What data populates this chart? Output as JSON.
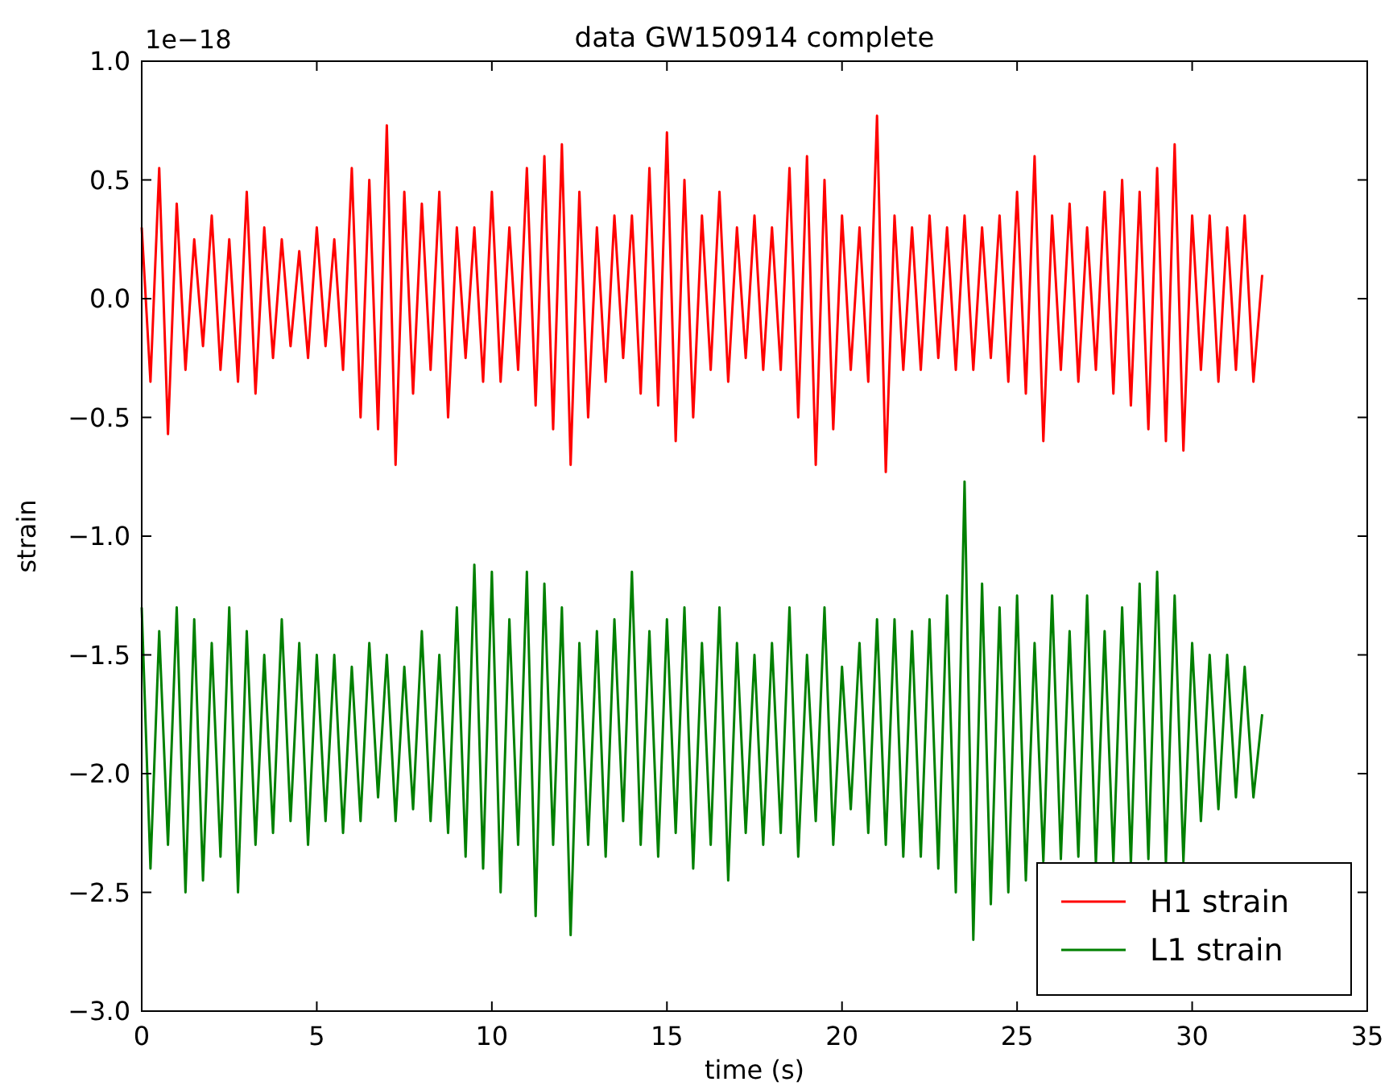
{
  "chart_data": {
    "type": "line",
    "title": "data GW150914 complete",
    "xlabel": "time (s)",
    "ylabel": "strain",
    "annotations": [
      "1e−18"
    ],
    "x": [
      0,
      0.25,
      0.5,
      0.75,
      1,
      1.25,
      1.5,
      1.75,
      2,
      2.25,
      2.5,
      2.75,
      3,
      3.25,
      3.5,
      3.75,
      4,
      4.25,
      4.5,
      4.75,
      5,
      5.25,
      5.5,
      5.75,
      6,
      6.25,
      6.5,
      6.75,
      7,
      7.25,
      7.5,
      7.75,
      8,
      8.25,
      8.5,
      8.75,
      9,
      9.25,
      9.5,
      9.75,
      10,
      10.25,
      10.5,
      10.75,
      11,
      11.25,
      11.5,
      11.75,
      12,
      12.25,
      12.5,
      12.75,
      13,
      13.25,
      13.5,
      13.75,
      14,
      14.25,
      14.5,
      14.75,
      15,
      15.25,
      15.5,
      15.75,
      16,
      16.25,
      16.5,
      16.75,
      17,
      17.25,
      17.5,
      17.75,
      18,
      18.25,
      18.5,
      18.75,
      19,
      19.25,
      19.5,
      19.75,
      20,
      20.25,
      20.5,
      20.75,
      21,
      21.25,
      21.5,
      21.75,
      22,
      22.25,
      22.5,
      22.75,
      23,
      23.25,
      23.5,
      23.75,
      24,
      24.25,
      24.5,
      24.75,
      25,
      25.25,
      25.5,
      25.75,
      26,
      26.25,
      26.5,
      26.75,
      27,
      27.25,
      27.5,
      27.75,
      28,
      28.25,
      28.5,
      28.75,
      29,
      29.25,
      29.5,
      29.75,
      30,
      30.25,
      30.5,
      30.75,
      31,
      31.25,
      31.5,
      31.75,
      32
    ],
    "series": [
      {
        "name": "H1 strain",
        "color": "#ff0000",
        "values": [
          0.3,
          -0.35,
          0.55,
          -0.57,
          0.4,
          -0.3,
          0.25,
          -0.2,
          0.35,
          -0.3,
          0.25,
          -0.35,
          0.45,
          -0.4,
          0.3,
          -0.25,
          0.25,
          -0.2,
          0.2,
          -0.25,
          0.3,
          -0.2,
          0.25,
          -0.3,
          0.55,
          -0.5,
          0.5,
          -0.55,
          0.73,
          -0.7,
          0.45,
          -0.4,
          0.4,
          -0.3,
          0.45,
          -0.5,
          0.3,
          -0.25,
          0.3,
          -0.35,
          0.45,
          -0.35,
          0.3,
          -0.3,
          0.55,
          -0.45,
          0.6,
          -0.55,
          0.65,
          -0.7,
          0.45,
          -0.5,
          0.3,
          -0.35,
          0.35,
          -0.25,
          0.35,
          -0.4,
          0.55,
          -0.45,
          0.7,
          -0.6,
          0.5,
          -0.5,
          0.35,
          -0.3,
          0.45,
          -0.35,
          0.3,
          -0.25,
          0.35,
          -0.3,
          0.3,
          -0.3,
          0.55,
          -0.5,
          0.6,
          -0.7,
          0.5,
          -0.55,
          0.35,
          -0.3,
          0.3,
          -0.35,
          0.77,
          -0.73,
          0.35,
          -0.3,
          0.3,
          -0.3,
          0.35,
          -0.25,
          0.3,
          -0.3,
          0.35,
          -0.3,
          0.3,
          -0.25,
          0.35,
          -0.35,
          0.45,
          -0.4,
          0.6,
          -0.6,
          0.35,
          -0.3,
          0.4,
          -0.35,
          0.3,
          -0.3,
          0.45,
          -0.4,
          0.5,
          -0.45,
          0.45,
          -0.55,
          0.55,
          -0.6,
          0.65,
          -0.64,
          0.35,
          -0.3,
          0.35,
          -0.35,
          0.3,
          -0.3,
          0.35,
          -0.35,
          0.1
        ]
      },
      {
        "name": "L1 strain",
        "color": "#008000",
        "values": [
          -1.3,
          -2.4,
          -1.4,
          -2.3,
          -1.3,
          -2.5,
          -1.35,
          -2.45,
          -1.45,
          -2.35,
          -1.3,
          -2.5,
          -1.4,
          -2.3,
          -1.5,
          -2.25,
          -1.35,
          -2.2,
          -1.45,
          -2.3,
          -1.5,
          -2.2,
          -1.5,
          -2.25,
          -1.55,
          -2.2,
          -1.45,
          -2.1,
          -1.5,
          -2.2,
          -1.55,
          -2.15,
          -1.4,
          -2.2,
          -1.5,
          -2.25,
          -1.3,
          -2.35,
          -1.12,
          -2.4,
          -1.15,
          -2.5,
          -1.35,
          -2.3,
          -1.15,
          -2.6,
          -1.2,
          -2.3,
          -1.3,
          -2.68,
          -1.45,
          -2.3,
          -1.4,
          -2.35,
          -1.35,
          -2.2,
          -1.15,
          -2.3,
          -1.4,
          -2.35,
          -1.35,
          -2.25,
          -1.3,
          -2.4,
          -1.45,
          -2.3,
          -1.3,
          -2.45,
          -1.45,
          -2.25,
          -1.5,
          -2.3,
          -1.45,
          -2.25,
          -1.3,
          -2.35,
          -1.5,
          -2.2,
          -1.3,
          -2.3,
          -1.55,
          -2.15,
          -1.45,
          -2.25,
          -1.35,
          -2.3,
          -1.35,
          -2.35,
          -1.4,
          -2.35,
          -1.35,
          -2.4,
          -1.25,
          -2.5,
          -0.77,
          -2.7,
          -1.2,
          -2.55,
          -1.3,
          -2.5,
          -1.25,
          -2.45,
          -1.45,
          -2.37,
          -1.25,
          -2.36,
          -1.4,
          -2.35,
          -1.25,
          -2.38,
          -1.4,
          -2.37,
          -1.3,
          -2.38,
          -1.2,
          -2.36,
          -1.15,
          -2.38,
          -1.25,
          -2.37,
          -1.45,
          -2.2,
          -1.5,
          -2.15,
          -1.5,
          -2.1,
          -1.55,
          -2.1,
          -1.75
        ]
      }
    ],
    "xlim": [
      0,
      35
    ],
    "ylim": [
      -3.0,
      1.0
    ],
    "xticks": [
      0,
      5,
      10,
      15,
      20,
      25,
      30,
      35
    ],
    "yticks": [
      {
        "value": -3.0,
        "label": "−3.0"
      },
      {
        "value": -2.5,
        "label": "−2.5"
      },
      {
        "value": -2.0,
        "label": "−2.0"
      },
      {
        "value": -1.5,
        "label": "−1.5"
      },
      {
        "value": -1.0,
        "label": "−1.0"
      },
      {
        "value": -0.5,
        "label": "−0.5"
      },
      {
        "value": 0,
        "label": "0.0"
      },
      {
        "value": 0.5,
        "label": "0.5"
      },
      {
        "value": 1.0,
        "label": "1.0"
      }
    ],
    "legend": "bottom right",
    "grid": false,
    "marker": "none",
    "line_style": "solid"
  }
}
